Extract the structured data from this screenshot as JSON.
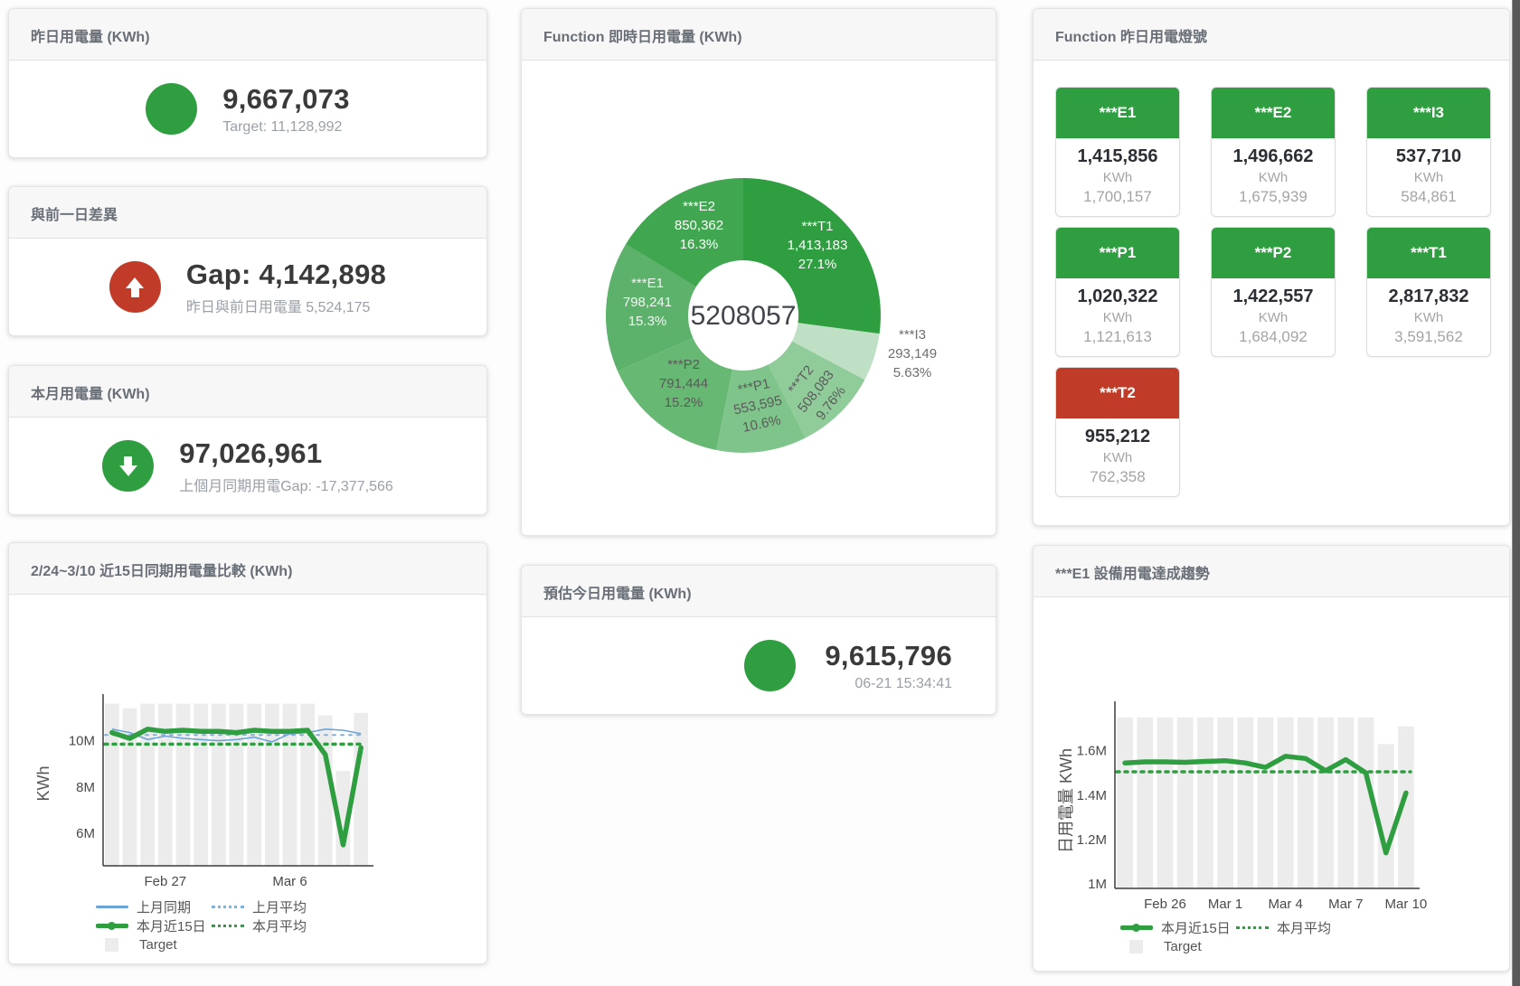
{
  "colors": {
    "green": "#2f9e41",
    "red": "#c13c28",
    "blue": "#6aa3d8",
    "target_bar": "#ececec",
    "header_text": "#696f77"
  },
  "cards": {
    "yesterday": {
      "title": "昨日用電量 (KWh)",
      "value": "9,667,073",
      "subtitle": "Target: 11,128,992"
    },
    "day_gap": {
      "title": "與前一日差異",
      "value": "Gap: 4,142,898",
      "subtitle": "昨日與前日用電量 5,524,175"
    },
    "month": {
      "title": "本月用電量 (KWh)",
      "value": "97,026,961",
      "subtitle": "上個月同期用電Gap: -17,377,566"
    },
    "today_estimate": {
      "title": "預估今日用電量 (KWh)",
      "value": "9,615,796",
      "subtitle": "06-21 15:34:41"
    }
  },
  "lights": {
    "title": "Function 昨日用電燈號",
    "unit": "KWh",
    "tiles": [
      {
        "id": "E1",
        "label": "***E1",
        "value": "1,415,856",
        "target": "1,700,157",
        "status": "green"
      },
      {
        "id": "E2",
        "label": "***E2",
        "value": "1,496,662",
        "target": "1,675,939",
        "status": "green"
      },
      {
        "id": "I3",
        "label": "***I3",
        "value": "537,710",
        "target": "584,861",
        "status": "green"
      },
      {
        "id": "P1",
        "label": "***P1",
        "value": "1,020,322",
        "target": "1,121,613",
        "status": "green"
      },
      {
        "id": "P2",
        "label": "***P2",
        "value": "1,422,557",
        "target": "1,684,092",
        "status": "green"
      },
      {
        "id": "T1",
        "label": "***T1",
        "value": "2,817,832",
        "target": "3,591,562",
        "status": "green"
      },
      {
        "id": "T2",
        "label": "***T2",
        "value": "955,212",
        "target": "762,358",
        "status": "red"
      }
    ]
  },
  "chart_data": [
    {
      "type": "pie",
      "title": "Function 即時日用電量 (KWh)",
      "center_total": "5208057",
      "slices": [
        {
          "id": "T1",
          "label": "***T1",
          "value": 1413183,
          "value_label": "1,413,183",
          "pct": "27.1%",
          "color": "#2f9e41",
          "text": "#ffffff"
        },
        {
          "id": "I3",
          "label": "***I3",
          "value": 293149,
          "value_label": "293,149",
          "pct": "5.63%",
          "color": "#bfe0c4",
          "text": "#6e6e6e"
        },
        {
          "id": "T2",
          "label": "***T2",
          "value": 508083,
          "value_label": "508,083",
          "pct": "9.76%",
          "color": "#90cc9a",
          "text": "#5a5a5a",
          "rotate": -52
        },
        {
          "id": "P1",
          "label": "***P1",
          "value": 553595,
          "value_label": "553,595",
          "pct": "10.6%",
          "color": "#7fc48a",
          "text": "#5a5a5a",
          "rotate": -12
        },
        {
          "id": "P2",
          "label": "***P2",
          "value": 791444,
          "value_label": "791,444",
          "pct": "15.2%",
          "color": "#66b873",
          "text": "#5a5a5a"
        },
        {
          "id": "E1",
          "label": "***E1",
          "value": 798241,
          "value_label": "798,241",
          "pct": "15.3%",
          "color": "#5cb26a",
          "text": "#f4f4f4"
        },
        {
          "id": "E2",
          "label": "***E2",
          "value": 850362,
          "value_label": "850,362",
          "pct": "16.3%",
          "color": "#40a750",
          "text": "#ffffff"
        }
      ]
    },
    {
      "type": "line",
      "title": "2/24~3/10 近15日同期用電量比較 (KWh)",
      "ylabel": "KWh",
      "ylim": [
        4.6,
        11.7
      ],
      "yticks": [
        {
          "v": 6,
          "label": "6M"
        },
        {
          "v": 8,
          "label": "8M"
        },
        {
          "v": 10,
          "label": "10M"
        }
      ],
      "xticks": [
        {
          "day": 4,
          "label": "Feb 27"
        },
        {
          "day": 11,
          "label": "Mar 6"
        }
      ],
      "series": {
        "target": {
          "name": "Target",
          "values": [
            11.6,
            11.4,
            11.6,
            11.6,
            11.6,
            11.6,
            11.6,
            11.6,
            11.6,
            11.6,
            11.6,
            11.6,
            11.1,
            8.7,
            11.2
          ]
        },
        "last_month": {
          "name": "上月同期",
          "values": [
            10.5,
            10.35,
            10.05,
            10.2,
            10.1,
            10.05,
            10.0,
            10.05,
            10.15,
            9.95,
            10.3,
            10.35,
            10.5,
            10.45,
            10.3
          ]
        },
        "this_month": {
          "name": "本月近15日",
          "values": [
            10.35,
            10.1,
            10.5,
            10.4,
            10.45,
            10.4,
            10.4,
            10.35,
            10.45,
            10.4,
            10.4,
            10.45,
            9.4,
            5.5,
            9.7
          ]
        },
        "last_month_avg": {
          "name": "上月平均",
          "value": 10.25
        },
        "this_month_avg": {
          "name": "本月平均",
          "value": 9.85
        }
      },
      "legend": {
        "last_month": "上月同期",
        "last_month_avg": "上月平均",
        "this_month": "本月近15日",
        "this_month_avg": "本月平均",
        "target": "Target"
      }
    },
    {
      "type": "line",
      "title": "***E1 設備用電達成趨勢",
      "ylabel": "日用電量 KWh",
      "ylim": [
        0.98,
        1.79
      ],
      "yticks": [
        {
          "v": 1.0,
          "label": "1M"
        },
        {
          "v": 1.2,
          "label": "1.2M"
        },
        {
          "v": 1.4,
          "label": "1.4M"
        },
        {
          "v": 1.6,
          "label": "1.6M"
        }
      ],
      "xticks": [
        {
          "day": 3,
          "label": "Feb 26"
        },
        {
          "day": 6,
          "label": "Mar 1"
        },
        {
          "day": 9,
          "label": "Mar 4"
        },
        {
          "day": 12,
          "label": "Mar 7"
        },
        {
          "day": 15,
          "label": "Mar 10"
        }
      ],
      "series": {
        "target": {
          "name": "Target",
          "values": [
            1.75,
            1.75,
            1.75,
            1.75,
            1.75,
            1.75,
            1.75,
            1.75,
            1.75,
            1.75,
            1.75,
            1.75,
            1.75,
            1.63,
            1.71
          ]
        },
        "this_month": {
          "name": "本月近15日",
          "values": [
            1.545,
            1.55,
            1.55,
            1.548,
            1.552,
            1.555,
            1.545,
            1.525,
            1.575,
            1.565,
            1.51,
            1.56,
            1.5,
            1.14,
            1.41
          ]
        },
        "this_month_avg": {
          "name": "本月平均",
          "value": 1.505
        }
      },
      "legend": {
        "this_month": "本月近15日",
        "this_month_avg": "本月平均",
        "target": "Target"
      }
    }
  ]
}
